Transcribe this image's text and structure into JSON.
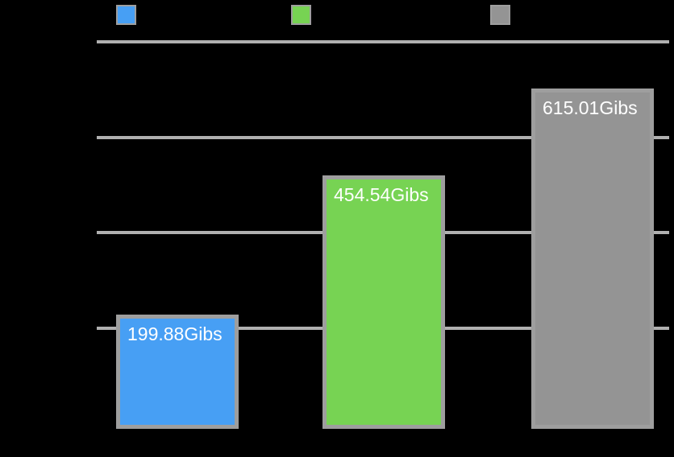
{
  "canvas": {
    "background": "#000000"
  },
  "legend": {
    "position": "top",
    "items": [
      {
        "swatch": "blue-swatch",
        "color": "#479ff4"
      },
      {
        "swatch": "green-swatch",
        "color": "#77d353"
      },
      {
        "swatch": "gray-swatch",
        "color": "#949494"
      }
    ]
  },
  "chart_data": {
    "type": "bar",
    "unit": "Gibs",
    "bars": [
      {
        "value": 199.88,
        "label": "199.88Gibs",
        "color": "#479ff4"
      },
      {
        "value": 454.54,
        "label": "454.54Gibs",
        "color": "#77d353"
      },
      {
        "value": 615.01,
        "label": "615.01Gibs",
        "color": "#949494"
      }
    ],
    "ylim": [
      0,
      700
    ],
    "gridline_values": [
      175,
      350,
      525,
      700
    ],
    "grid": true,
    "legend_position": "top",
    "colors": {
      "bar_border": "#9e9e9e",
      "gridline": "#b0b0b0",
      "value_label": "#ffffff"
    }
  }
}
